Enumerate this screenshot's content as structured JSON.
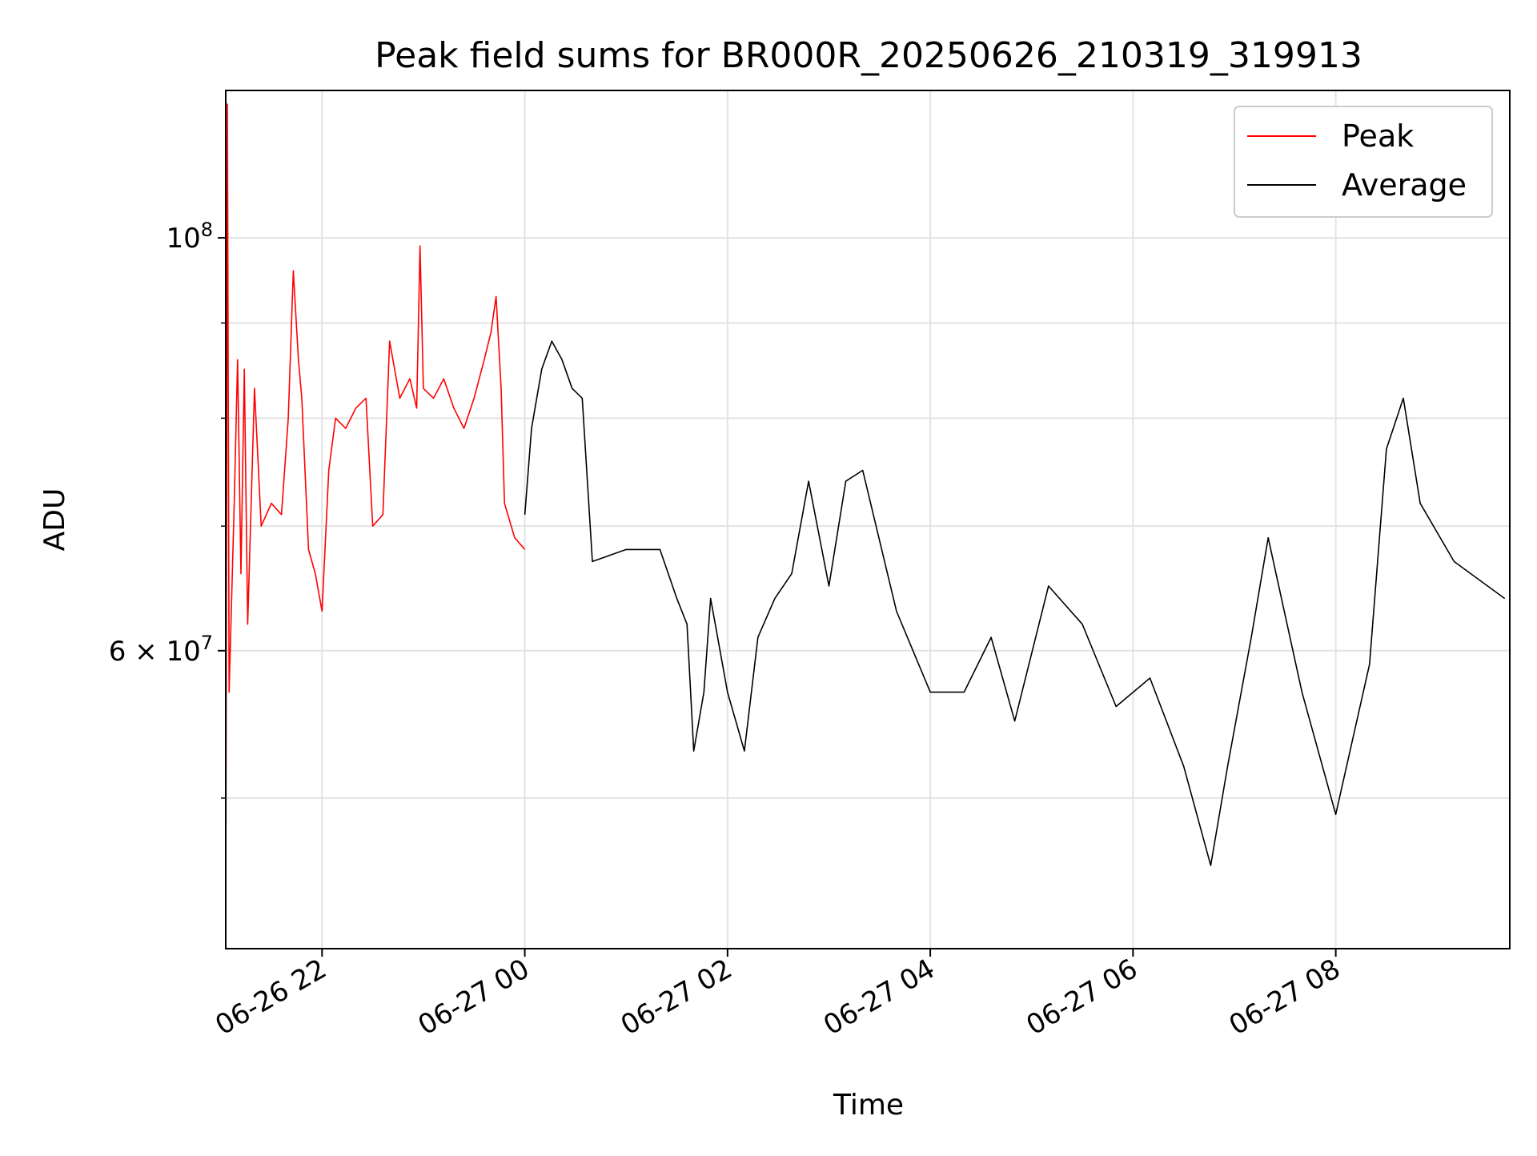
{
  "chart_data": {
    "type": "line",
    "title": "Peak field sums for BR000R_20250626_210319_319913",
    "xlabel": "Time",
    "ylabel": "ADU",
    "y_scale": "log",
    "xlim": [
      "2025-06-26 21:03",
      "2025-06-27 09:43"
    ],
    "ylim": [
      41500000,
      120000000
    ],
    "x_ticks": [
      {
        "value": "2025-06-26 22:00",
        "label": "06-26 22"
      },
      {
        "value": "2025-06-27 00:00",
        "label": "06-27 00"
      },
      {
        "value": "2025-06-27 02:00",
        "label": "06-27 02"
      },
      {
        "value": "2025-06-27 04:00",
        "label": "06-27 04"
      },
      {
        "value": "2025-06-27 06:00",
        "label": "06-27 06"
      },
      {
        "value": "2025-06-27 08:00",
        "label": "06-27 08"
      }
    ],
    "y_major_ticks": [
      {
        "value": 100000000,
        "base": "10",
        "exp": "8"
      },
      {
        "value": 60000000,
        "mantissa": "6",
        "base": "10",
        "exp": "7"
      }
    ],
    "y_minor_gridlines": [
      50000000,
      70000000,
      80000000,
      90000000
    ],
    "grid": true,
    "legend_position": "top-right",
    "series": [
      {
        "name": "Peak",
        "color": "#ff0000",
        "points": [
          [
            "2025-06-26 21:03",
            44000000
          ],
          [
            "2025-06-26 21:04",
            118000000
          ],
          [
            "2025-06-26 21:05",
            57000000
          ],
          [
            "2025-06-26 21:08",
            72000000
          ],
          [
            "2025-06-26 21:10",
            86000000
          ],
          [
            "2025-06-26 21:12",
            66000000
          ],
          [
            "2025-06-26 21:14",
            85000000
          ],
          [
            "2025-06-26 21:16",
            62000000
          ],
          [
            "2025-06-26 21:20",
            83000000
          ],
          [
            "2025-06-26 21:24",
            70000000
          ],
          [
            "2025-06-26 21:30",
            72000000
          ],
          [
            "2025-06-26 21:36",
            71000000
          ],
          [
            "2025-06-26 21:40",
            80000000
          ],
          [
            "2025-06-26 21:43",
            96000000
          ],
          [
            "2025-06-26 21:46",
            86000000
          ],
          [
            "2025-06-26 21:48",
            82000000
          ],
          [
            "2025-06-26 21:52",
            68000000
          ],
          [
            "2025-06-26 21:56",
            66000000
          ],
          [
            "2025-06-26 22:00",
            63000000
          ],
          [
            "2025-06-26 22:04",
            75000000
          ],
          [
            "2025-06-26 22:08",
            80000000
          ],
          [
            "2025-06-26 22:14",
            79000000
          ],
          [
            "2025-06-26 22:20",
            81000000
          ],
          [
            "2025-06-26 22:26",
            82000000
          ],
          [
            "2025-06-26 22:30",
            70000000
          ],
          [
            "2025-06-26 22:36",
            71000000
          ],
          [
            "2025-06-26 22:40",
            88000000
          ],
          [
            "2025-06-26 22:46",
            82000000
          ],
          [
            "2025-06-26 22:52",
            84000000
          ],
          [
            "2025-06-26 22:56",
            81000000
          ],
          [
            "2025-06-26 22:58",
            99000000
          ],
          [
            "2025-06-26 23:00",
            83000000
          ],
          [
            "2025-06-26 23:06",
            82000000
          ],
          [
            "2025-06-26 23:12",
            84000000
          ],
          [
            "2025-06-26 23:18",
            81000000
          ],
          [
            "2025-06-26 23:24",
            79000000
          ],
          [
            "2025-06-26 23:30",
            82000000
          ],
          [
            "2025-06-26 23:36",
            86000000
          ],
          [
            "2025-06-26 23:40",
            89000000
          ],
          [
            "2025-06-26 23:43",
            93000000
          ],
          [
            "2025-06-26 23:46",
            83000000
          ],
          [
            "2025-06-26 23:48",
            72000000
          ],
          [
            "2025-06-26 23:54",
            69000000
          ],
          [
            "2025-06-26 24:00",
            68000000
          ]
        ]
      },
      {
        "name": "Average",
        "color": "#000000",
        "points": [
          [
            "2025-06-27 00:00",
            71000000
          ],
          [
            "2025-06-27 00:04",
            79000000
          ],
          [
            "2025-06-27 00:10",
            85000000
          ],
          [
            "2025-06-27 00:16",
            88000000
          ],
          [
            "2025-06-27 00:22",
            86000000
          ],
          [
            "2025-06-27 00:28",
            83000000
          ],
          [
            "2025-06-27 00:34",
            82000000
          ],
          [
            "2025-06-27 00:40",
            67000000
          ],
          [
            "2025-06-27 01:00",
            68000000
          ],
          [
            "2025-06-27 01:20",
            68000000
          ],
          [
            "2025-06-27 01:30",
            64000000
          ],
          [
            "2025-06-27 01:36",
            62000000
          ],
          [
            "2025-06-27 01:40",
            53000000
          ],
          [
            "2025-06-27 01:46",
            57000000
          ],
          [
            "2025-06-27 01:50",
            64000000
          ],
          [
            "2025-06-27 02:00",
            57000000
          ],
          [
            "2025-06-27 02:10",
            53000000
          ],
          [
            "2025-06-27 02:18",
            61000000
          ],
          [
            "2025-06-27 02:28",
            64000000
          ],
          [
            "2025-06-27 02:38",
            66000000
          ],
          [
            "2025-06-27 02:48",
            74000000
          ],
          [
            "2025-06-27 03:00",
            65000000
          ],
          [
            "2025-06-27 03:10",
            74000000
          ],
          [
            "2025-06-27 03:20",
            75000000
          ],
          [
            "2025-06-27 03:40",
            63000000
          ],
          [
            "2025-06-27 04:00",
            57000000
          ],
          [
            "2025-06-27 04:20",
            57000000
          ],
          [
            "2025-06-27 04:36",
            61000000
          ],
          [
            "2025-06-27 04:50",
            55000000
          ],
          [
            "2025-06-27 05:10",
            65000000
          ],
          [
            "2025-06-27 05:30",
            62000000
          ],
          [
            "2025-06-27 05:50",
            56000000
          ],
          [
            "2025-06-27 06:10",
            58000000
          ],
          [
            "2025-06-27 06:30",
            52000000
          ],
          [
            "2025-06-27 06:46",
            46000000
          ],
          [
            "2025-06-27 06:56",
            52000000
          ],
          [
            "2025-06-27 07:10",
            61000000
          ],
          [
            "2025-06-27 07:20",
            69000000
          ],
          [
            "2025-06-27 07:40",
            57000000
          ],
          [
            "2025-06-27 08:00",
            49000000
          ],
          [
            "2025-06-27 08:20",
            59000000
          ],
          [
            "2025-06-27 08:30",
            77000000
          ],
          [
            "2025-06-27 08:40",
            82000000
          ],
          [
            "2025-06-27 08:50",
            72000000
          ],
          [
            "2025-06-27 09:10",
            67000000
          ],
          [
            "2025-06-27 09:40",
            64000000
          ]
        ]
      }
    ]
  }
}
